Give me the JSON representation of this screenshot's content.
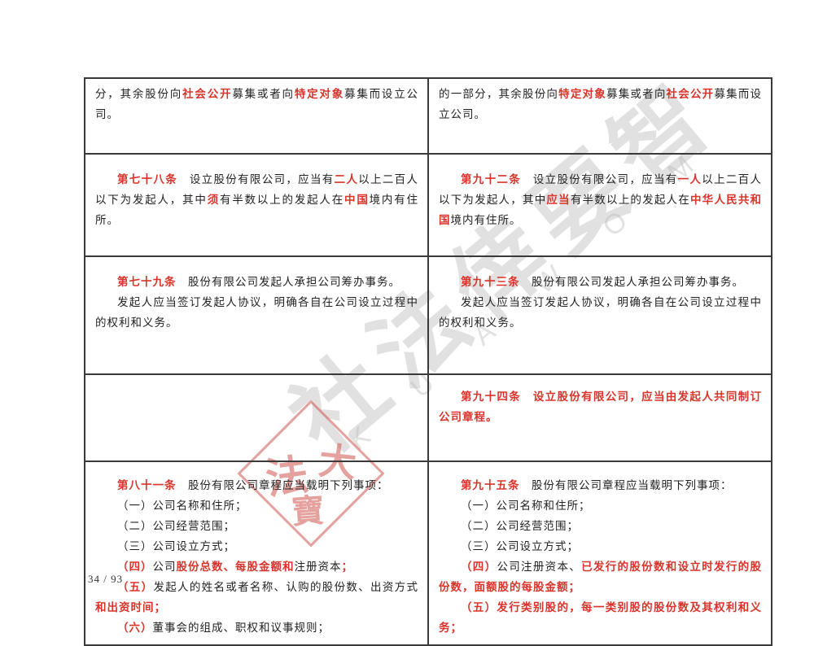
{
  "page": {
    "number_label": "34 / 93"
  },
  "colors": {
    "emphasis_red": "#d9342b",
    "seal_red": "#d0564e",
    "watermark_gray": "#a8a8a8",
    "border_black": "#3a3a3a"
  },
  "watermark": {
    "diagonal_text": "社法倖要智",
    "latin_letters": "K U A W O M",
    "seal_chars": [
      "法",
      "大",
      "寶"
    ]
  },
  "table": {
    "rows": [
      {
        "left": [
          {
            "indent": false,
            "runs": [
              {
                "t": "分，其余股份向"
              },
              {
                "t": "社会公开",
                "em": true
              },
              {
                "t": "募集或者向"
              },
              {
                "t": "特定对象",
                "em": true
              },
              {
                "t": "募集而设立公司。"
              }
            ]
          }
        ],
        "right": [
          {
            "indent": false,
            "runs": [
              {
                "t": "的一部分，其余股份向"
              },
              {
                "t": "特定对象",
                "em": true
              },
              {
                "t": "募集或者向"
              },
              {
                "t": "社会公开",
                "em": true
              },
              {
                "t": "募集而设立公司。"
              }
            ]
          }
        ]
      },
      {
        "left": [
          {
            "indent": true,
            "runs": [
              {
                "t": "第七十八条",
                "em": true
              },
              {
                "t": "　设立股份有限公司，应当有"
              },
              {
                "t": "二人",
                "em": true
              },
              {
                "t": "以上二百人以下为发起人，其中"
              },
              {
                "t": "须",
                "em": true
              },
              {
                "t": "有半数以上的发起人在"
              },
              {
                "t": "中国",
                "em": true
              },
              {
                "t": "境内有住所。"
              }
            ]
          }
        ],
        "right": [
          {
            "indent": true,
            "runs": [
              {
                "t": "第九十二条",
                "em": true
              },
              {
                "t": "　设立股份有限公司，应当有"
              },
              {
                "t": "一人",
                "em": true
              },
              {
                "t": "以上二百人以下为发起人，其中"
              },
              {
                "t": "应当",
                "em": true
              },
              {
                "t": "有半数以上的发起人在"
              },
              {
                "t": "中华人民共和国",
                "em": true
              },
              {
                "t": "境内有住所。"
              }
            ]
          }
        ]
      },
      {
        "left": [
          {
            "indent": true,
            "runs": [
              {
                "t": "第七十九条",
                "em": true
              },
              {
                "t": "　股份有限公司发起人承担公司筹办事务。"
              }
            ]
          },
          {
            "indent": true,
            "runs": [
              {
                "t": "发起人应当签订发起人协议，明确各自在公司设立过程中的权利和义务。"
              }
            ]
          }
        ],
        "right": [
          {
            "indent": true,
            "runs": [
              {
                "t": "第九十三条",
                "em": true
              },
              {
                "t": "　股份有限公司发起人承担公司筹办事务。"
              }
            ]
          },
          {
            "indent": true,
            "runs": [
              {
                "t": "发起人应当签订发起人协议，明确各自在公司设立过程中的权利和义务。"
              }
            ]
          }
        ]
      },
      {
        "left": [],
        "right": [
          {
            "indent": true,
            "runs": [
              {
                "t": "第九十四条",
                "em": true
              },
              {
                "t": "　设立股份有限公司，应当由发起人共同制订公司章程。",
                "em": true
              }
            ]
          }
        ]
      },
      {
        "left": [
          {
            "indent": true,
            "runs": [
              {
                "t": "第八十一条",
                "em": true
              },
              {
                "t": "　股份有限公司章程应当载明下列事项："
              }
            ]
          },
          {
            "indent": true,
            "runs": [
              {
                "t": "（一）公司名称和住所；"
              }
            ]
          },
          {
            "indent": true,
            "runs": [
              {
                "t": "（二）公司经营范围；"
              }
            ]
          },
          {
            "indent": true,
            "runs": [
              {
                "t": "（三）公司设立方式；"
              }
            ]
          },
          {
            "indent": true,
            "runs": [
              {
                "t": "（四）",
                "em": true
              },
              {
                "t": "公司"
              },
              {
                "t": "股份总数、每股金额和",
                "em": true
              },
              {
                "t": "注册资本"
              },
              {
                "t": "；",
                "em": true
              }
            ]
          },
          {
            "indent": true,
            "runs": [
              {
                "t": "（五）",
                "em": true
              },
              {
                "t": "发起人的姓名或者名称、认购的股份数、出资方式"
              },
              {
                "t": "和出资时间；",
                "em": true
              }
            ]
          },
          {
            "indent": true,
            "runs": [
              {
                "t": "（六）",
                "em": true
              },
              {
                "t": "董事会的组成、职权和议事规则；"
              }
            ]
          }
        ],
        "right": [
          {
            "indent": true,
            "runs": [
              {
                "t": "第九十五条",
                "em": true
              },
              {
                "t": "　股份有限公司章程应当载明下列事项："
              }
            ]
          },
          {
            "indent": true,
            "runs": [
              {
                "t": "（一）公司名称和住所；"
              }
            ]
          },
          {
            "indent": true,
            "runs": [
              {
                "t": "（二）公司经营范围；"
              }
            ]
          },
          {
            "indent": true,
            "runs": [
              {
                "t": "（三）公司设立方式；"
              }
            ]
          },
          {
            "indent": true,
            "runs": [
              {
                "t": "（四）",
                "em": true
              },
              {
                "t": "公司注册资本、"
              },
              {
                "t": "已发行的股份数和设立时发行的股份数，面额股的每股金额；",
                "em": true
              }
            ]
          },
          {
            "indent": true,
            "runs": [
              {
                "t": "（五）发行类别股的，每一类别股的股份数及其权利和义务；",
                "em": true
              }
            ]
          }
        ]
      }
    ]
  }
}
